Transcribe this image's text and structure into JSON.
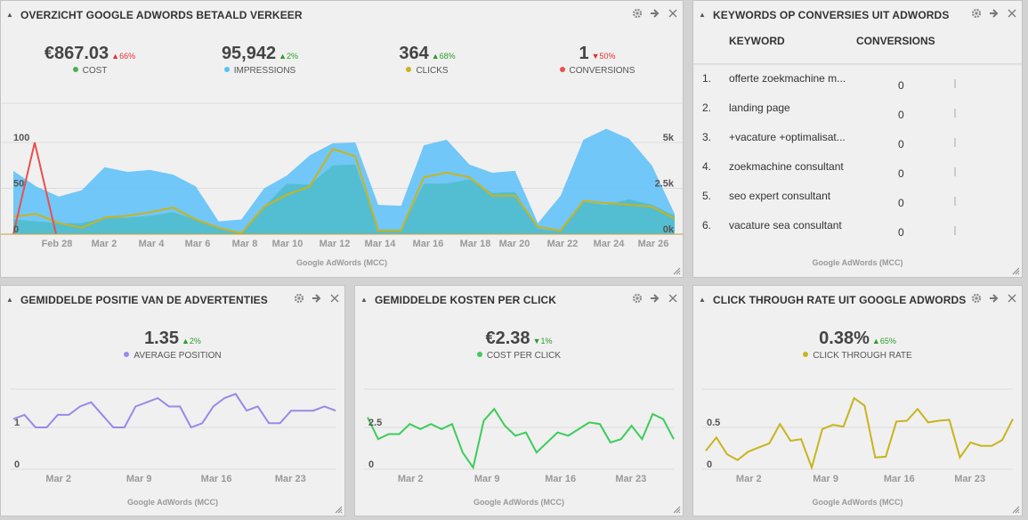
{
  "colors": {
    "cost": "#4caf50",
    "impressions": "#5bc0f8",
    "clicks": "#c8b41e",
    "conversions": "#e85050",
    "avg_position": "#9a88e8",
    "cpc": "#3ccc5a",
    "ctr": "#c8b41e"
  },
  "overview": {
    "title": "OVERZICHT GOOGLE ADWORDS BETAALD VERKEER",
    "source": "Google AdWords (MCC)",
    "metrics": [
      {
        "value": "€867.03",
        "change": "66%",
        "direction": "down",
        "label": "COST",
        "dot": "#4caf50"
      },
      {
        "value": "95,942",
        "change": "2%",
        "direction": "up",
        "label": "IMPRESSIONS",
        "dot": "#5bc0f8"
      },
      {
        "value": "364",
        "change": "68%",
        "direction": "up",
        "label": "CLICKS",
        "dot": "#c8b41e"
      },
      {
        "value": "1",
        "change": "50%",
        "direction": "down",
        "label": "CONVERSIONS",
        "dot": "#e85050"
      }
    ]
  },
  "keywords": {
    "title": "KEYWORDS OP CONVERSIES UIT ADWORDS",
    "col_keyword": "KEYWORD",
    "col_conversions": "CONVERSIONS",
    "source": "Google AdWords (MCC)",
    "rows": [
      {
        "rank": "1.",
        "keyword": "offerte zoekmachine m...",
        "conversions": "0"
      },
      {
        "rank": "2.",
        "keyword": "landing page",
        "conversions": "0"
      },
      {
        "rank": "3.",
        "keyword": "+vacature +optimalisat...",
        "conversions": "0"
      },
      {
        "rank": "4.",
        "keyword": "zoekmachine consultant",
        "conversions": "0"
      },
      {
        "rank": "5.",
        "keyword": "seo expert consultant",
        "conversions": "0"
      },
      {
        "rank": "6.",
        "keyword": "vacature sea consultant",
        "conversions": "0"
      }
    ]
  },
  "position": {
    "title": "GEMIDDELDE POSITIE VAN DE ADVERTENTIES",
    "value": "1.35",
    "change": "2%",
    "label": "AVERAGE POSITION",
    "source": "Google AdWords (MCC)"
  },
  "cpc": {
    "title": "GEMIDDELDE KOSTEN PER CLICK",
    "value": "€2.38",
    "change": "1%",
    "label": "COST PER CLICK",
    "source": "Google AdWords (MCC)"
  },
  "ctr": {
    "title": "CLICK THROUGH RATE UIT GOOGLE ADWORDS",
    "value": "0.38%",
    "change": "65%",
    "label": "CLICK THROUGH RATE",
    "source": "Google AdWords (MCC)"
  },
  "chart_data": [
    {
      "type": "area",
      "x_ticks": [
        "Feb 28",
        "Mar 2",
        "Mar 4",
        "Mar 6",
        "Mar 8",
        "Mar 10",
        "Mar 12",
        "Mar 14",
        "Mar 16",
        "Mar 18",
        "Mar 20",
        "Mar 22",
        "Mar 24",
        "Mar 26"
      ],
      "y_left_ticks": [
        "0",
        "50",
        "100"
      ],
      "y_right_ticks": [
        "0k",
        "2.5k",
        "5k"
      ],
      "y_left_range": [
        0,
        100
      ],
      "y_right_range": [
        0,
        5000
      ],
      "series": [
        {
          "name": "IMPRESSIONS",
          "kind": "area",
          "axis": "right",
          "values": [
            3450,
            2600,
            2050,
            2400,
            3650,
            3400,
            3500,
            3250,
            2600,
            700,
            800,
            2500,
            3200,
            4300,
            4950,
            5000,
            1600,
            1550,
            4850,
            5150,
            3800,
            3350,
            3450,
            600,
            2100,
            5150,
            5750,
            5200,
            3750,
            1100
          ]
        },
        {
          "name": "COST",
          "kind": "area",
          "axis": "right",
          "values": [
            800,
            700,
            600,
            600,
            900,
            900,
            1000,
            1200,
            800,
            350,
            50,
            1500,
            2750,
            2700,
            3750,
            3800,
            250,
            250,
            2750,
            2750,
            3000,
            2250,
            2300,
            300,
            150,
            1750,
            1600,
            1900,
            1600,
            1000
          ]
        },
        {
          "name": "CLICKS",
          "kind": "line",
          "axis": "right",
          "values": [
            950,
            1100,
            600,
            350,
            900,
            1000,
            1200,
            1450,
            800,
            350,
            50,
            1500,
            2150,
            2600,
            4650,
            4250,
            200,
            200,
            3100,
            3350,
            3100,
            2100,
            2100,
            400,
            200,
            1800,
            1700,
            1600,
            1500,
            850
          ]
        },
        {
          "name": "CONVERSIONS",
          "kind": "line",
          "axis": "left",
          "values": [
            0,
            100,
            0
          ]
        }
      ]
    },
    {
      "type": "line",
      "name": "AVERAGE POSITION",
      "x_ticks": [
        "Mar 2",
        "Mar 9",
        "Mar 16",
        "Mar 23"
      ],
      "y_ticks": [
        "0",
        "1"
      ],
      "ylim": [
        0,
        2
      ],
      "values": [
        1.2,
        1.3,
        1.0,
        1.0,
        1.3,
        1.3,
        1.5,
        1.6,
        1.3,
        1.0,
        1.0,
        1.5,
        1.6,
        1.7,
        1.5,
        1.5,
        1.0,
        1.1,
        1.5,
        1.7,
        1.8,
        1.4,
        1.5,
        1.1,
        1.1,
        1.4,
        1.4,
        1.4,
        1.5,
        1.4
      ]
    },
    {
      "type": "line",
      "name": "COST PER CLICK",
      "x_ticks": [
        "Mar 2",
        "Mar 9",
        "Mar 16",
        "Mar 23"
      ],
      "y_ticks": [
        "0",
        "2.5"
      ],
      "ylim": [
        0,
        5
      ],
      "values": [
        3.1,
        1.8,
        2.1,
        2.1,
        2.7,
        2.4,
        2.7,
        2.4,
        2.7,
        1.0,
        0.1,
        2.9,
        3.6,
        2.6,
        2.0,
        2.2,
        1.0,
        1.6,
        2.2,
        2.0,
        2.4,
        2.8,
        2.7,
        1.6,
        1.8,
        2.6,
        1.8,
        3.3,
        3.0,
        1.8
      ]
    },
    {
      "type": "line",
      "name": "CLICK THROUGH RATE",
      "x_ticks": [
        "Mar 2",
        "Mar 9",
        "Mar 16",
        "Mar 23"
      ],
      "y_ticks": [
        "0",
        "0.5"
      ],
      "ylim": [
        0,
        1
      ],
      "values": [
        0.22,
        0.38,
        0.18,
        0.11,
        0.21,
        0.26,
        0.31,
        0.54,
        0.34,
        0.36,
        0.02,
        0.48,
        0.53,
        0.51,
        0.85,
        0.76,
        0.14,
        0.15,
        0.57,
        0.58,
        0.72,
        0.56,
        0.58,
        0.59,
        0.14,
        0.32,
        0.28,
        0.28,
        0.35,
        0.6
      ]
    }
  ]
}
